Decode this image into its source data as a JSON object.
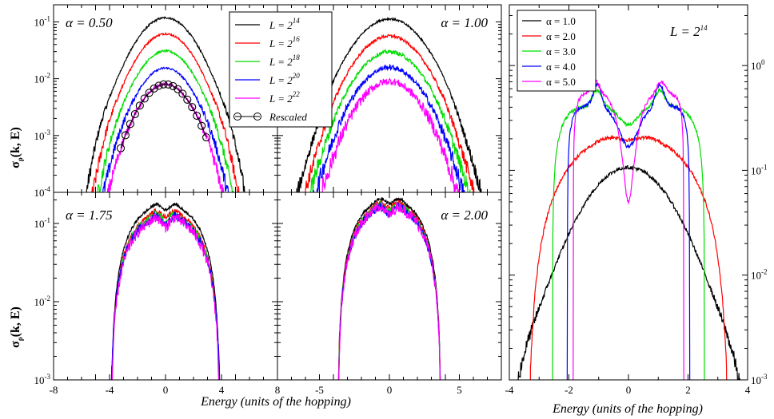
{
  "y_axis_label": {
    "sym": "σ",
    "sub": "ρ",
    "rest": "(k, E)"
  },
  "x_axis_label": "Energy (units of the hopping)",
  "chart_data": [
    {
      "type": "line",
      "log_y": true,
      "panel": "top-left",
      "annotation": "α = 0.50",
      "xlim": [
        -8,
        8
      ],
      "ylim": [
        0.0001,
        0.2
      ],
      "yticks": [
        {
          "v": 0.1,
          "m": "10",
          "e": "-1"
        },
        {
          "v": 0.01,
          "m": "10",
          "e": "-2"
        },
        {
          "v": 0.001,
          "m": "10",
          "e": "-3"
        },
        {
          "v": 0.0001,
          "m": "10",
          "e": "-4"
        }
      ],
      "series": [
        {
          "name": "L = 2^14",
          "color": "#000000",
          "peak": 0.115,
          "sigma": 1.5,
          "tail": 0.0035,
          "tail_w": 4.6,
          "ripple": 0
        },
        {
          "name": "L = 2^16",
          "color": "#ff0000",
          "peak": 0.06,
          "sigma": 1.45,
          "tail": 0.0018,
          "tail_w": 4.2,
          "ripple": 0
        },
        {
          "name": "L = 2^18",
          "color": "#00dd00",
          "peak": 0.03,
          "sigma": 1.42,
          "tail": 0.0008,
          "tail_w": 3.9,
          "ripple": 0
        },
        {
          "name": "L = 2^20",
          "color": "#0000ff",
          "peak": 0.015,
          "sigma": 1.4,
          "tail": 0.0004,
          "tail_w": 3.6,
          "ripple": 0
        },
        {
          "name": "L = 2^22",
          "color": "#ff00ff",
          "peak": 0.0078,
          "sigma": 1.38,
          "tail": 0.0002,
          "tail_w": 3.4,
          "ripple": 0
        }
      ],
      "rescaled": {
        "name": "Rescaled",
        "peak": 0.0078,
        "sigma": 1.38,
        "tail": 0.0002,
        "tail_w": 3.4,
        "x_step": 0.34,
        "x_range": [
          -3.2,
          3.2
        ]
      }
    },
    {
      "type": "line",
      "log_y": true,
      "panel": "top-right",
      "annotation": "α = 1.00",
      "xlim": [
        -8,
        8
      ],
      "ylim": [
        0.0001,
        0.2
      ],
      "series": [
        {
          "name": "L = 2^14",
          "color": "#000000",
          "peak": 0.11,
          "sigma": 1.75,
          "tail": 0.003,
          "tail_w": 4.4,
          "ripple": 0.04
        },
        {
          "name": "L = 2^16",
          "color": "#ff0000",
          "peak": 0.055,
          "sigma": 1.7,
          "tail": 0.0015,
          "tail_w": 4.1,
          "ripple": 0.06
        },
        {
          "name": "L = 2^18",
          "color": "#00dd00",
          "peak": 0.029,
          "sigma": 1.68,
          "tail": 0.0008,
          "tail_w": 3.8,
          "ripple": 0.08
        },
        {
          "name": "L = 2^20",
          "color": "#0000ff",
          "peak": 0.0155,
          "sigma": 1.66,
          "tail": 0.0004,
          "tail_w": 3.6,
          "ripple": 0.1
        },
        {
          "name": "L = 2^22",
          "color": "#ff00ff",
          "peak": 0.0088,
          "sigma": 1.62,
          "tail": 0.0002,
          "tail_w": 3.4,
          "ripple": 0.14
        }
      ]
    },
    {
      "type": "line",
      "log_y": true,
      "panel": "bottom-left",
      "annotation": "α = 1.75",
      "xlim": [
        -8,
        8
      ],
      "ylim": [
        0.001,
        0.25
      ],
      "yticks": [
        {
          "v": 0.1,
          "m": "10",
          "e": "-1"
        },
        {
          "v": 0.01,
          "m": "10",
          "e": "-2"
        },
        {
          "v": 0.001,
          "m": "10",
          "e": "-3"
        }
      ],
      "xticks": [
        -8,
        -4,
        0,
        4
      ],
      "series": [
        {
          "name": "L = 2^14",
          "color": "#000000",
          "peak": 0.17,
          "dip": 0.12,
          "halfwidth": 3.9,
          "ripple": 0.04
        },
        {
          "name": "L = 2^16",
          "color": "#ff0000",
          "peak": 0.14,
          "dip": 0.13,
          "halfwidth": 3.9,
          "ripple": 0.06
        },
        {
          "name": "L = 2^18",
          "color": "#00dd00",
          "peak": 0.13,
          "dip": 0.17,
          "halfwidth": 3.9,
          "ripple": 0.1
        },
        {
          "name": "L = 2^20",
          "color": "#0000ff",
          "peak": 0.12,
          "dip": 0.2,
          "halfwidth": 3.95,
          "ripple": 0.12
        },
        {
          "name": "L = 2^22",
          "color": "#ff00ff",
          "peak": 0.115,
          "dip": 0.22,
          "halfwidth": 3.9,
          "ripple": 0.16
        }
      ]
    },
    {
      "type": "line",
      "log_y": true,
      "panel": "bottom-right",
      "annotation": "α = 2.00",
      "xlim": [
        -8,
        8
      ],
      "ylim": [
        0.001,
        0.25
      ],
      "xticks": [
        8,
        -5,
        0,
        5
      ],
      "series": [
        {
          "name": "L = 2^14",
          "color": "#000000",
          "peak": 0.2,
          "dip": 0.1,
          "halfwidth": 3.7,
          "ripple": 0.05
        },
        {
          "name": "L = 2^16",
          "color": "#ff0000",
          "peak": 0.18,
          "dip": 0.12,
          "halfwidth": 3.7,
          "ripple": 0.07
        },
        {
          "name": "L = 2^18",
          "color": "#00dd00",
          "peak": 0.17,
          "dip": 0.14,
          "halfwidth": 3.7,
          "ripple": 0.1
        },
        {
          "name": "L = 2^20",
          "color": "#0000ff",
          "peak": 0.16,
          "dip": 0.16,
          "halfwidth": 3.7,
          "ripple": 0.12
        },
        {
          "name": "L = 2^22",
          "color": "#ff00ff",
          "peak": 0.16,
          "dip": 0.2,
          "halfwidth": 3.7,
          "ripple": 0.16
        }
      ]
    },
    {
      "type": "line",
      "log_y": true,
      "panel": "right",
      "annotation": "L = 2^14",
      "xlim": [
        -4,
        4
      ],
      "ylim": [
        0.001,
        3.8
      ],
      "xticks": [
        -4,
        -2,
        0,
        2,
        4
      ],
      "yticks": [
        {
          "v": 1,
          "m": "10",
          "e": "0"
        },
        {
          "v": 0.1,
          "m": "10",
          "e": "-1"
        },
        {
          "v": 0.01,
          "m": "10",
          "e": "-2"
        },
        {
          "v": 0.001,
          "m": "10",
          "e": "-3"
        }
      ],
      "series": [
        {
          "name": "α = 1.0",
          "color": "#000000"
        },
        {
          "name": "α = 2.0",
          "color": "#ff0000"
        },
        {
          "name": "α = 3.0",
          "color": "#00dd00"
        },
        {
          "name": "α = 4.0",
          "color": "#0000ff"
        },
        {
          "name": "α = 5.0",
          "color": "#ff00ff"
        }
      ]
    }
  ]
}
